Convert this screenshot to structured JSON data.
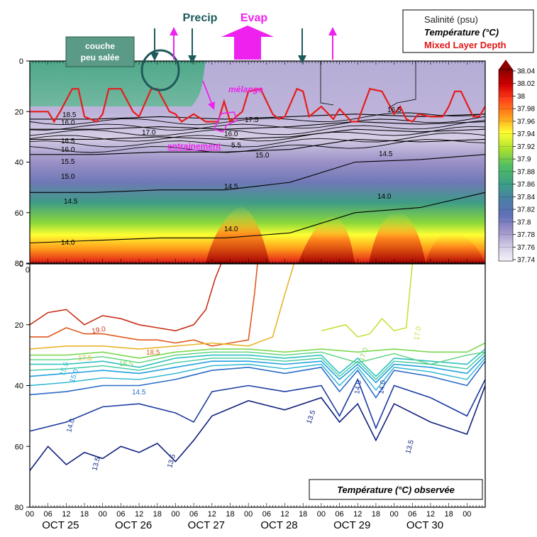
{
  "chart_data": [
    {
      "type": "heatmap",
      "panel": "top",
      "ylim": [
        80,
        0
      ],
      "y_ticks": [
        0,
        20,
        40,
        60,
        80
      ],
      "x_hour_ticks": [
        "00",
        "06",
        "12",
        "18",
        "00",
        "06",
        "12",
        "18",
        "00",
        "06",
        "12",
        "18",
        "00",
        "06",
        "12",
        "18",
        "00",
        "06",
        "12",
        "18",
        "00",
        "06",
        "12",
        "18"
      ],
      "legend": {
        "salinity": "Salinité (psu)",
        "temperature": "Température (°C)",
        "mld": "Mixed Layer Depth"
      },
      "colorbar": {
        "ticks": [
          38.04,
          38.02,
          38,
          37.98,
          37.96,
          37.94,
          37.92,
          37.9,
          37.88,
          37.86,
          37.84,
          37.82,
          37.8,
          37.78,
          37.76,
          37.74
        ],
        "colors": [
          "#8b0000",
          "#c80000",
          "#ff2020",
          "#ff7a1a",
          "#ffc21a",
          "#ffff33",
          "#c6ee22",
          "#88d838",
          "#52bf60",
          "#3c9e88",
          "#4a7fa6",
          "#6070b8",
          "#8c88c4",
          "#b7acd8",
          "#d8d0e8",
          "#f2eef8"
        ]
      },
      "annotations": {
        "couche": [
          "couche",
          "peu salée"
        ],
        "precip": "Precip",
        "evap": "Evap",
        "melange": "mélange",
        "entrainement": "entrainement"
      },
      "contour_labels": [
        "18.5",
        "16.0",
        "17.0",
        "16.5",
        "16.0",
        "15.5",
        "15.0",
        "14.5",
        "14.0",
        "17.5",
        "16.0",
        "5.5",
        "15.0",
        "16.5",
        "14.5",
        "14.5",
        "14.0",
        "14.0"
      ],
      "mixed_layer_depth": {
        "x_hours": [
          0,
          6,
          8,
          10,
          14,
          16,
          18,
          22,
          24,
          26,
          30,
          34,
          36,
          40,
          42,
          46,
          48,
          50,
          54,
          58,
          62,
          64,
          66,
          70,
          72,
          76,
          80,
          82,
          84,
          88,
          90,
          92,
          96,
          100,
          102,
          106,
          108,
          112,
          116,
          120,
          122,
          124,
          126,
          128,
          132,
          136,
          138,
          140,
          142,
          146,
          148,
          150
        ],
        "depth_m": [
          20,
          20,
          24,
          20,
          11,
          11,
          22,
          24,
          21,
          11,
          11,
          20,
          22,
          11,
          11,
          20,
          21,
          24,
          21,
          24,
          24,
          16,
          24,
          20,
          12,
          11,
          21,
          23,
          22,
          11,
          12,
          22,
          18,
          23,
          19,
          24,
          24,
          11,
          12,
          21,
          18,
          23,
          24,
          21,
          22,
          22,
          18,
          12,
          12,
          22,
          22,
          18
        ]
      },
      "temperature_contours": [
        {
          "level": "18.5",
          "depth_m": [
            23,
            23,
            22,
            23,
            22,
            21,
            22,
            21
          ]
        },
        {
          "level": "17.0",
          "depth_m": [
            27,
            27,
            26,
            27,
            26,
            24,
            25,
            24
          ]
        },
        {
          "level": "16.0",
          "depth_m": [
            31,
            31,
            30,
            31,
            30,
            27,
            28,
            27
          ]
        },
        {
          "level": "15.0",
          "depth_m": [
            37,
            37,
            36,
            36,
            35,
            31,
            32,
            31
          ]
        },
        {
          "level": "14.5",
          "depth_m": [
            52,
            52,
            51,
            51,
            48,
            40,
            39,
            37
          ]
        },
        {
          "level": "14.0",
          "depth_m": [
            72,
            71,
            70,
            70,
            68,
            60,
            58,
            52
          ]
        }
      ]
    },
    {
      "type": "line",
      "panel": "bottom",
      "title": "Température (°C) observée",
      "ylim": [
        80,
        0
      ],
      "y_ticks": [
        0,
        20,
        40,
        60,
        80
      ],
      "x_hour_ticks": [
        "00",
        "06",
        "12",
        "18",
        "00",
        "06",
        "12",
        "18",
        "00",
        "06",
        "12",
        "18",
        "00",
        "06",
        "12",
        "18",
        "00",
        "06",
        "12",
        "18",
        "00",
        "06",
        "12",
        "18",
        "00"
      ],
      "day_labels": [
        "OCT 25",
        "OCT 26",
        "OCT 27",
        "OCT 28",
        "OCT 29",
        "OCT 30"
      ],
      "contour_labels": [
        "19.0",
        "18.5",
        "17.5",
        "16.5",
        "15.5",
        "15.0",
        "14.5",
        "14.0",
        "13.5",
        "13.5",
        "13.5",
        "13.5",
        "17.0",
        "17.0",
        "14.0",
        "14.0"
      ],
      "isotherms": [
        {
          "level": "19.0",
          "color": "#c83018",
          "x_hours": [
            0,
            6,
            12,
            18,
            24,
            30,
            36,
            42,
            48,
            54,
            58,
            61,
            63
          ],
          "depth_m": [
            20,
            16,
            15,
            20,
            17,
            18,
            20,
            21,
            22,
            20,
            15,
            5,
            0
          ]
        },
        {
          "level": "18.5",
          "color": "#e05a20",
          "x_hours": [
            0,
            6,
            12,
            18,
            24,
            30,
            36,
            42,
            48,
            54,
            60,
            66,
            72,
            74,
            75
          ],
          "depth_m": [
            24,
            24,
            21,
            23,
            23,
            24,
            25,
            25,
            26,
            25,
            27,
            26,
            25,
            10,
            0
          ]
        },
        {
          "level": "17.5",
          "color": "#e8b428",
          "x_hours": [
            0,
            12,
            24,
            36,
            48,
            60,
            72,
            80,
            84,
            87
          ],
          "depth_m": [
            28,
            27,
            27,
            28,
            27,
            26,
            27,
            24,
            10,
            0
          ]
        },
        {
          "level": "17.0",
          "color": "#c8e03a",
          "x_hours": [
            96,
            104,
            108,
            112,
            116,
            120,
            124,
            126
          ],
          "depth_m": [
            22,
            20,
            24,
            23,
            18,
            22,
            21,
            0
          ]
        },
        {
          "level": "16.5",
          "color": "#7cd850",
          "x_hours": [
            0,
            12,
            24,
            36,
            48,
            60,
            72,
            84,
            96,
            108,
            120,
            132,
            144,
            150
          ],
          "depth_m": [
            30,
            30,
            29,
            31,
            29,
            28,
            28,
            29,
            28,
            29,
            28,
            29,
            29,
            26
          ]
        },
        {
          "level": "15.5",
          "color": "#2ec0c0",
          "x_hours": [
            0,
            12,
            24,
            36,
            48,
            60,
            72,
            84,
            96,
            102,
            108,
            114,
            120,
            132,
            144,
            150
          ],
          "depth_m": [
            33,
            33,
            32,
            34,
            31,
            30,
            30,
            31,
            30,
            36,
            31,
            37,
            31,
            32,
            33,
            28
          ]
        },
        {
          "level": "15.0",
          "color": "#22a0e0",
          "x_hours": [
            0,
            12,
            24,
            36,
            48,
            60,
            72,
            84,
            96,
            102,
            108,
            114,
            120,
            132,
            144,
            150
          ],
          "depth_m": [
            37,
            36,
            35,
            36,
            34,
            32,
            32,
            33,
            32,
            38,
            33,
            39,
            33,
            34,
            36,
            30
          ]
        },
        {
          "level": "14.5",
          "color": "#2c6cc8",
          "x_hours": [
            0,
            12,
            24,
            36,
            48,
            60,
            72,
            84,
            96,
            102,
            108,
            114,
            120,
            132,
            144,
            150
          ],
          "depth_m": [
            43,
            42,
            40,
            40,
            38,
            35,
            34,
            36,
            34,
            42,
            35,
            44,
            35,
            37,
            40,
            32
          ]
        },
        {
          "level": "14.0",
          "color": "#1c3ca0",
          "x_hours": [
            0,
            12,
            24,
            36,
            48,
            54,
            60,
            72,
            84,
            96,
            102,
            108,
            114,
            120,
            132,
            144,
            150
          ],
          "depth_m": [
            55,
            52,
            47,
            46,
            49,
            52,
            42,
            40,
            42,
            40,
            50,
            38,
            54,
            40,
            44,
            50,
            38
          ]
        },
        {
          "level": "13.5",
          "color": "#10207c",
          "x_hours": [
            0,
            6,
            12,
            18,
            24,
            30,
            36,
            42,
            48,
            54,
            60,
            72,
            84,
            96,
            102,
            108,
            114,
            120,
            132,
            144,
            150
          ],
          "depth_m": [
            68,
            60,
            66,
            62,
            64,
            60,
            62,
            59,
            65,
            58,
            50,
            45,
            48,
            44,
            52,
            46,
            58,
            46,
            52,
            56,
            40
          ]
        }
      ]
    }
  ]
}
